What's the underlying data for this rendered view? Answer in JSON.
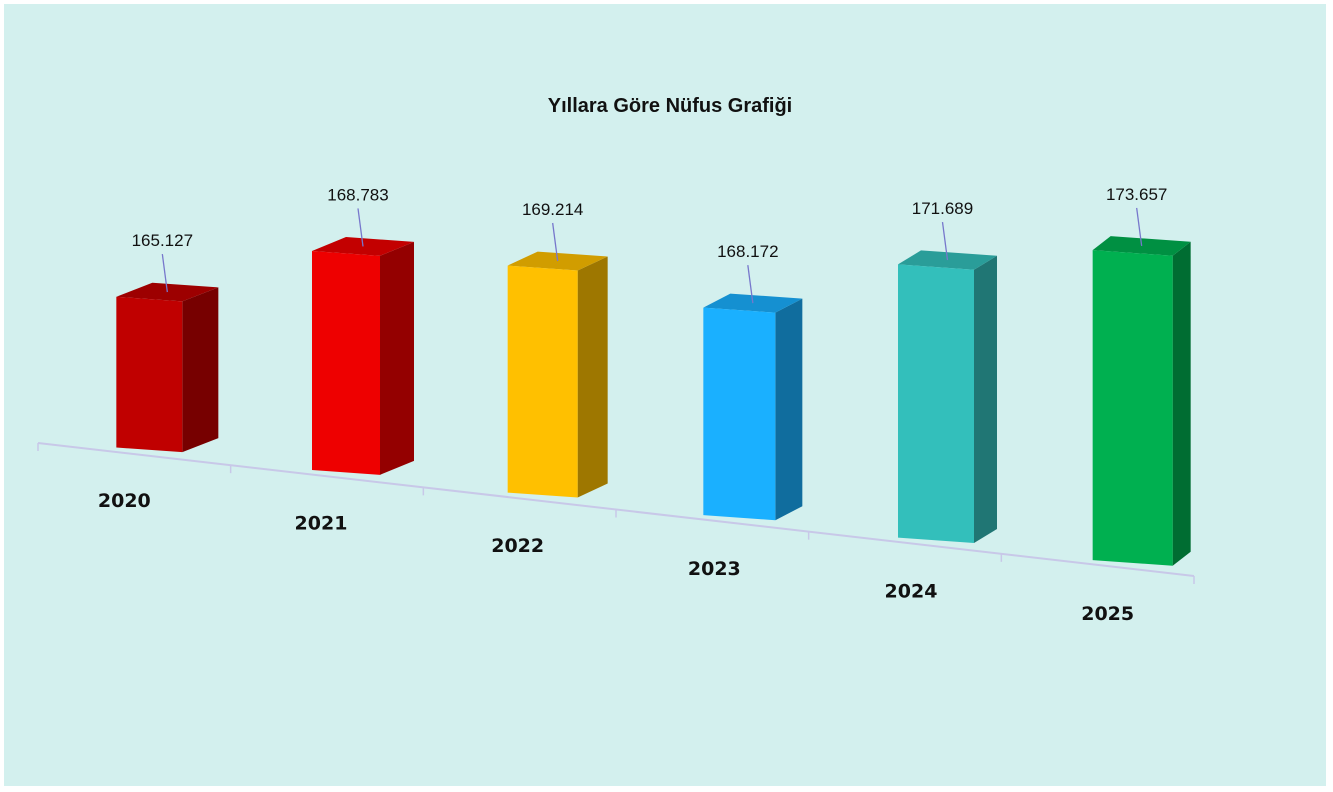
{
  "chart_data": {
    "type": "bar",
    "title": "Yıllara Göre Nüfus Grafiği",
    "categories": [
      "2020",
      "2021",
      "2022",
      "2023",
      "2024",
      "2025"
    ],
    "values": [
      165127,
      168783,
      169214,
      168172,
      171689,
      173657
    ],
    "data_labels": [
      "165.127",
      "168.783",
      "169.214",
      "168.172",
      "171.689",
      "173.657"
    ],
    "colors": [
      "#c00000",
      "#ee0000",
      "#ffc000",
      "#1ab0ff",
      "#33bfbb",
      "#00b050"
    ],
    "xlabel": "",
    "ylabel": "",
    "legend": "none",
    "grid": false,
    "style": "3d-column"
  }
}
